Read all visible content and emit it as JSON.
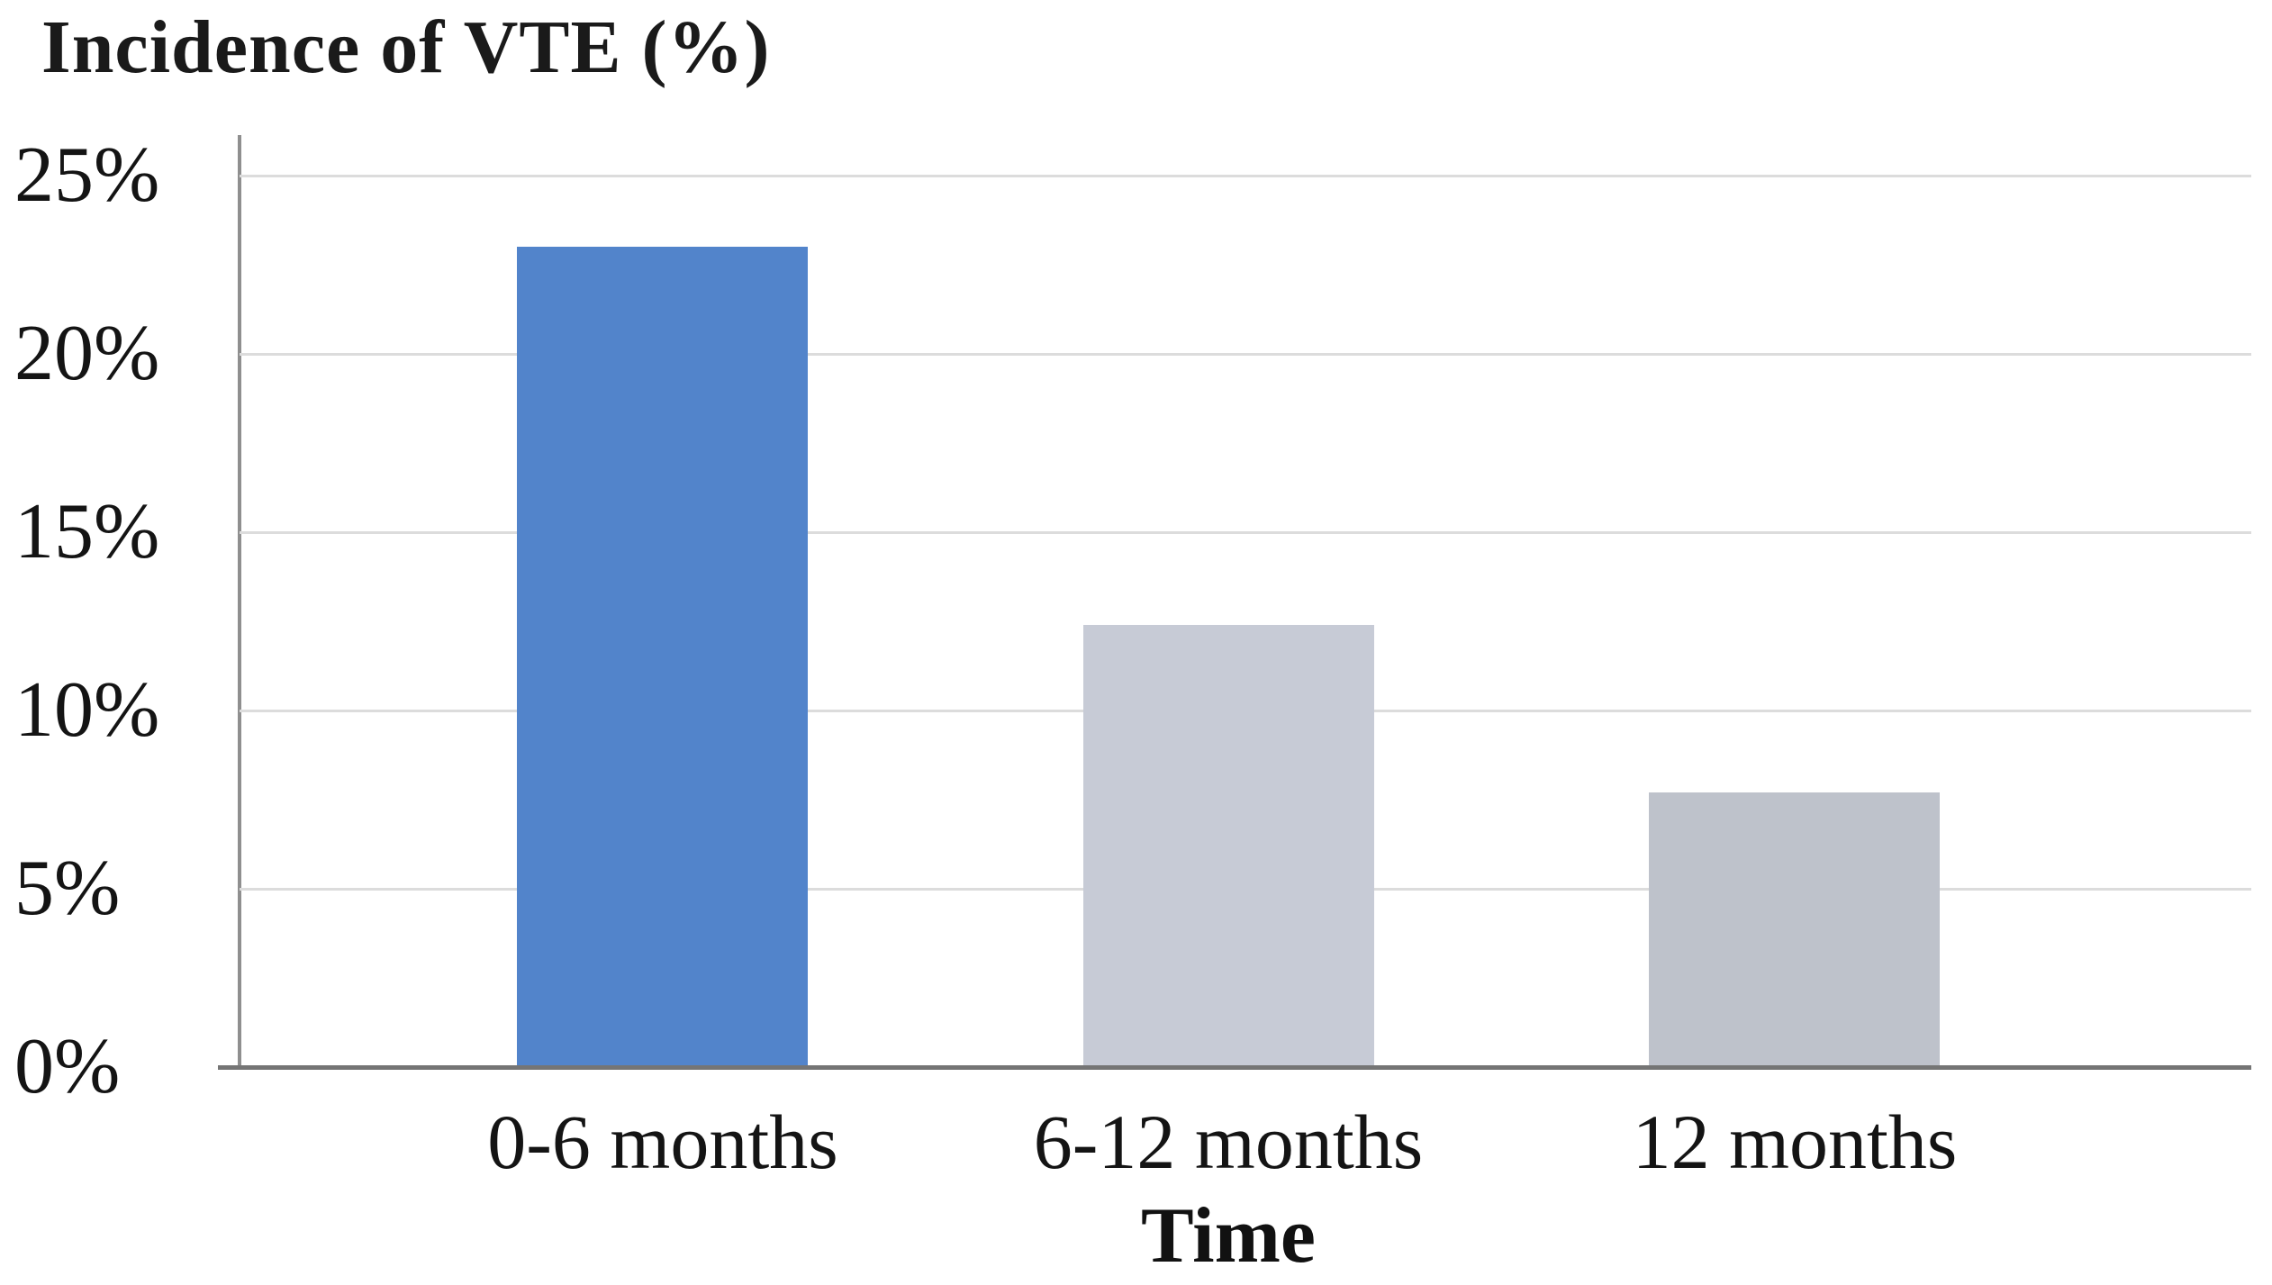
{
  "chart_data": {
    "type": "bar",
    "title": "Incidence of VTE (%)",
    "xlabel": "Time",
    "ylabel": "Incidence of VTE (%)",
    "categories": [
      "0-6 months",
      "6-12 months",
      "12 months"
    ],
    "values": [
      23,
      12.4,
      7.7
    ],
    "value_unit": "%",
    "ylim": [
      0,
      26
    ],
    "ytick_labels": [
      "0%",
      "5%",
      "10%",
      "15%",
      "20%",
      "25%"
    ],
    "ytick_values": [
      0,
      5,
      10,
      15,
      20,
      25
    ],
    "grid": "horizontal gridlines on",
    "legend_position": "none",
    "bar_colors": [
      "#5284cb",
      "#c7cbd6",
      "#bec2cb"
    ],
    "gridline_color": "#dcdcdc",
    "axis_color": "#8f8f8f",
    "background_color": "#ffffff"
  }
}
